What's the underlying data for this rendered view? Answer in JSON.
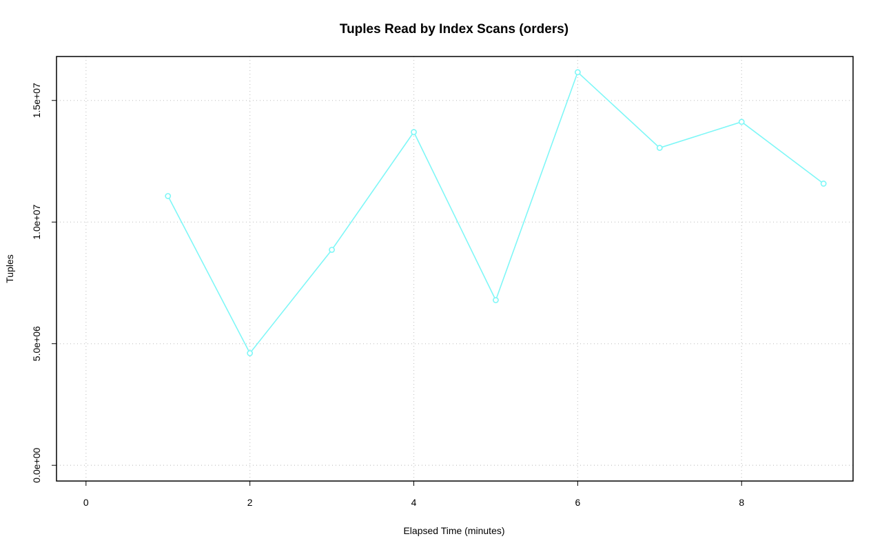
{
  "chart_data": {
    "type": "line",
    "title": "Tuples Read by Index Scans (orders)",
    "x_label": "Elapsed Time (minutes)",
    "y_label": "Tuples",
    "x": [
      1,
      2,
      3,
      4,
      5,
      6,
      7,
      8,
      9
    ],
    "series": [
      {
        "name": "orders",
        "color": "#7ff7f7",
        "values": [
          11070000,
          4610000,
          8860000,
          13700000,
          6790000,
          16160000,
          13050000,
          14120000,
          11580000
        ]
      }
    ],
    "xlim": [
      -0.36,
      9.36
    ],
    "xticks": [
      0,
      2,
      4,
      6,
      8
    ],
    "ylim": [
      -646000,
      16806000
    ],
    "yticks": [
      {
        "value": 0,
        "label": "0.0e+00"
      },
      {
        "value": 5000000,
        "label": "5.0e+06"
      },
      {
        "value": 10000000,
        "label": "1.0e+07"
      },
      {
        "value": 15000000,
        "label": "1.5e+07"
      }
    ],
    "grid": true
  }
}
